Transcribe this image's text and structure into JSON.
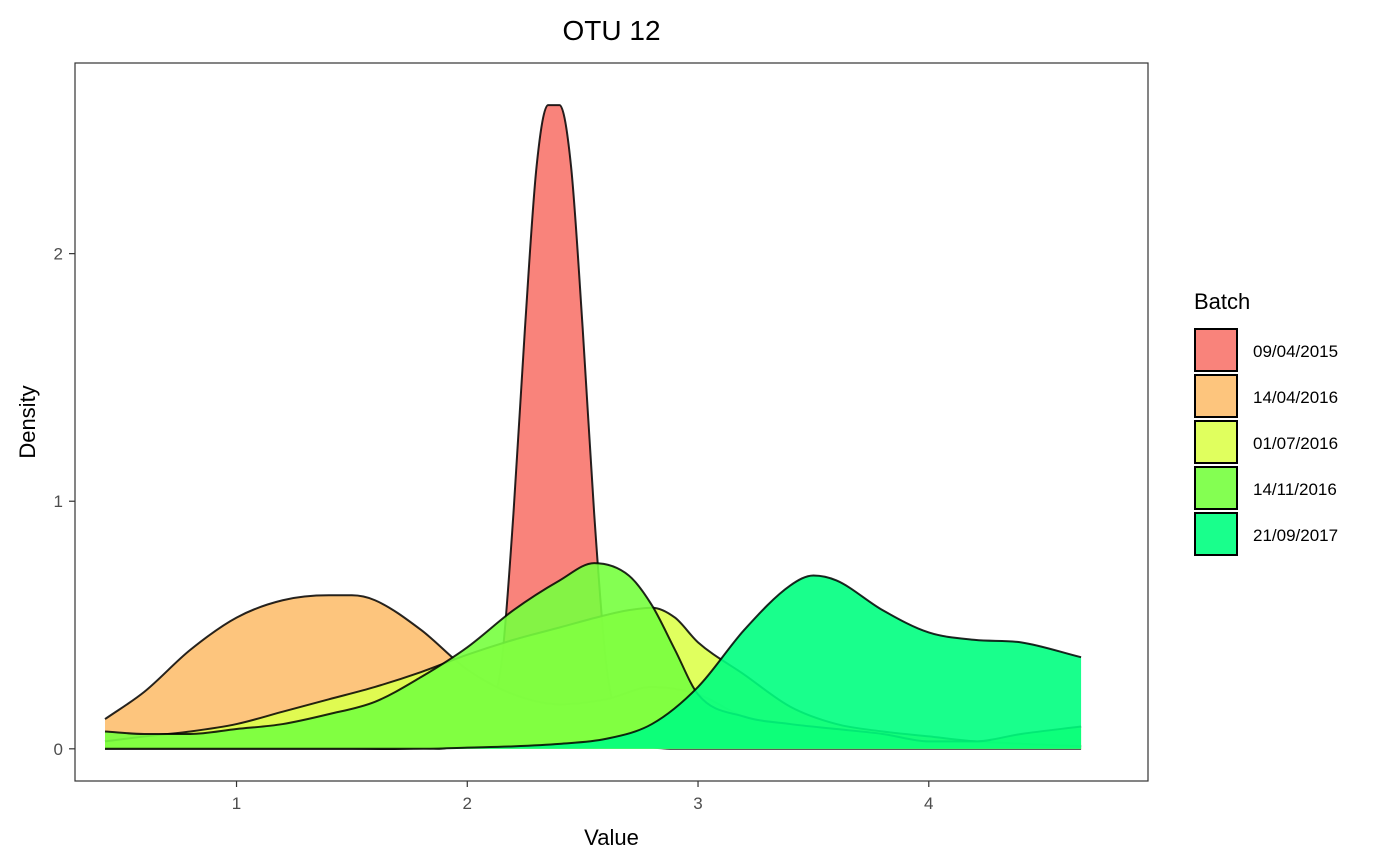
{
  "chart_data": {
    "type": "area",
    "subtype": "density",
    "title": "OTU 12",
    "xlabel": "Value",
    "ylabel": "Density",
    "xlim": [
      0.3,
      4.95
    ],
    "ylim": [
      -0.13,
      2.77
    ],
    "x_ticks": [
      1,
      2,
      3,
      4
    ],
    "y_ticks": [
      0,
      1,
      2
    ],
    "grid": false,
    "legend": {
      "title": "Batch",
      "placement": "right"
    },
    "series": [
      {
        "name": "09/04/2015",
        "color": "#F8766D",
        "x": [
          0.43,
          1.0,
          1.5,
          1.8,
          1.95,
          2.0,
          2.05,
          2.1,
          2.15,
          2.2,
          2.25,
          2.3,
          2.35,
          2.4,
          2.45,
          2.5,
          2.55,
          2.6,
          2.65,
          2.7,
          2.75,
          2.8,
          2.85,
          2.9,
          3.0,
          3.2,
          4.0,
          4.66
        ],
        "y": [
          0,
          0,
          0,
          0.003,
          0.02,
          0.08,
          0.12,
          0.17,
          0.36,
          0.95,
          1.7,
          2.35,
          2.6,
          2.6,
          2.35,
          1.7,
          0.95,
          0.36,
          0.12,
          0.05,
          0.02,
          0.006,
          0.002,
          0,
          0,
          0,
          0,
          0
        ]
      },
      {
        "name": "14/04/2016",
        "color": "#FDBF6F",
        "x": [
          0.43,
          0.6,
          0.8,
          1.0,
          1.2,
          1.4,
          1.5,
          1.6,
          1.8,
          2.0,
          2.2,
          2.4,
          2.6,
          2.8,
          3.0,
          3.2,
          3.4,
          3.6,
          3.8,
          4.0,
          4.2,
          4.4,
          4.66
        ],
        "y": [
          0.12,
          0.23,
          0.4,
          0.53,
          0.6,
          0.62,
          0.62,
          0.6,
          0.48,
          0.32,
          0.22,
          0.18,
          0.2,
          0.25,
          0.22,
          0.13,
          0.1,
          0.08,
          0.06,
          0.04,
          0.03,
          0.02,
          0.01
        ]
      },
      {
        "name": "01/07/2016",
        "color": "#DDFF4C",
        "x": [
          0.43,
          0.6,
          0.8,
          1.0,
          1.2,
          1.4,
          1.6,
          1.8,
          2.0,
          2.2,
          2.4,
          2.6,
          2.7,
          2.8,
          2.9,
          3.0,
          3.2,
          3.4,
          3.6,
          3.8,
          4.0,
          4.2,
          4.4,
          4.66
        ],
        "y": [
          0.03,
          0.05,
          0.07,
          0.1,
          0.15,
          0.2,
          0.25,
          0.31,
          0.38,
          0.44,
          0.49,
          0.54,
          0.56,
          0.57,
          0.53,
          0.43,
          0.3,
          0.17,
          0.1,
          0.07,
          0.05,
          0.03,
          0.02,
          0.01
        ]
      },
      {
        "name": "14/11/2016",
        "color": "#77FF3F",
        "x": [
          0.43,
          0.6,
          0.8,
          1.0,
          1.2,
          1.4,
          1.6,
          1.8,
          2.0,
          2.2,
          2.4,
          2.55,
          2.7,
          2.8,
          2.9,
          3.0,
          3.2,
          3.4,
          3.6,
          3.8,
          4.0,
          4.2,
          4.4,
          4.66
        ],
        "y": [
          0.07,
          0.06,
          0.06,
          0.08,
          0.1,
          0.14,
          0.19,
          0.29,
          0.41,
          0.56,
          0.68,
          0.75,
          0.7,
          0.58,
          0.4,
          0.22,
          0.13,
          0.1,
          0.08,
          0.06,
          0.03,
          0.03,
          0.06,
          0.09
        ]
      },
      {
        "name": "21/09/2017",
        "color": "#00FF80",
        "x": [
          0.43,
          1.0,
          1.5,
          1.8,
          2.0,
          2.2,
          2.4,
          2.6,
          2.8,
          3.0,
          3.2,
          3.4,
          3.5,
          3.6,
          3.8,
          4.0,
          4.2,
          4.4,
          4.66
        ],
        "y": [
          0,
          0,
          0,
          0,
          0.005,
          0.01,
          0.02,
          0.04,
          0.1,
          0.25,
          0.48,
          0.66,
          0.7,
          0.68,
          0.56,
          0.47,
          0.44,
          0.43,
          0.37
        ]
      }
    ]
  }
}
